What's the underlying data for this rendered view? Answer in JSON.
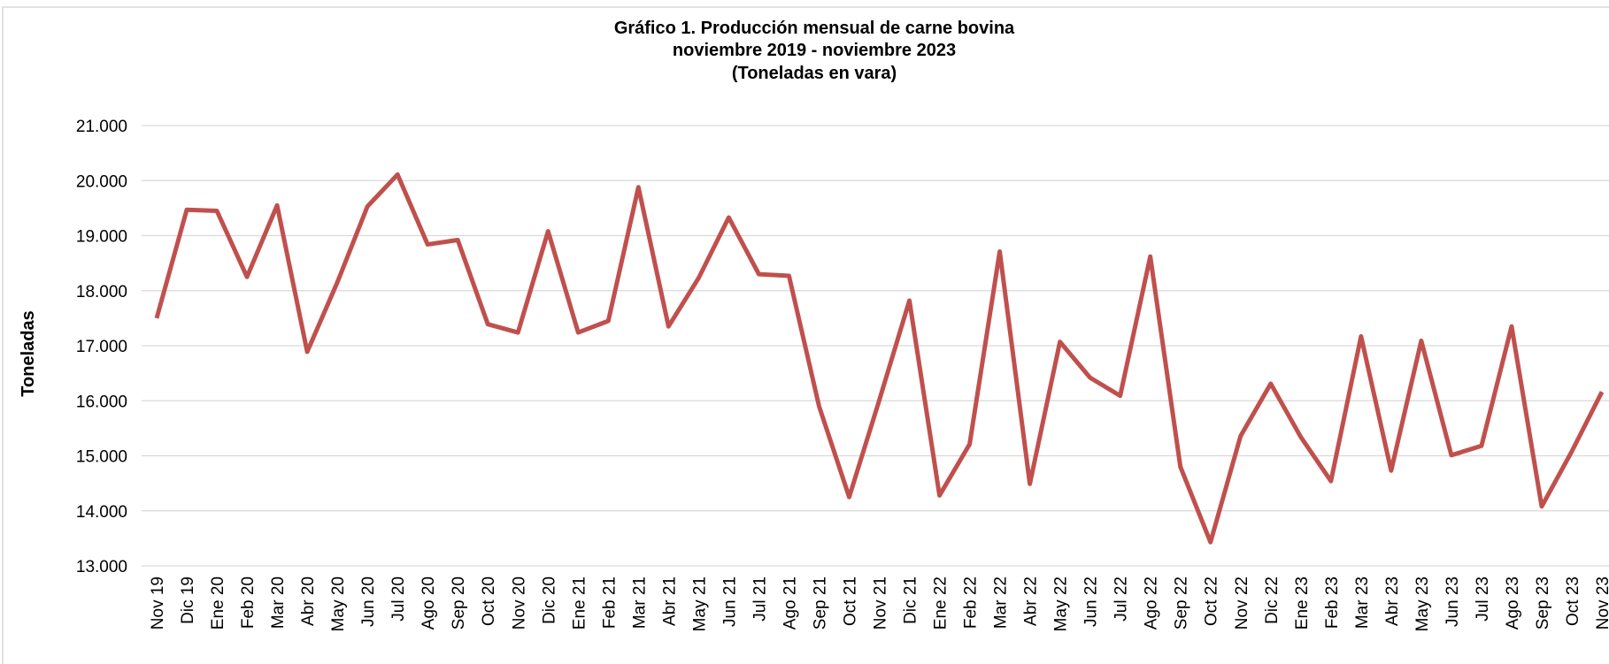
{
  "chart_data": {
    "type": "line",
    "title": [
      "Gráfico 1. Producción mensual de carne bovina",
      "noviembre 2019 - noviembre 2023",
      "(Toneladas en vara)"
    ],
    "ylabel": "Toneladas",
    "categories": [
      "Nov 19",
      "Dic 19",
      "Ene 20",
      "Feb 20",
      "Mar 20",
      "Abr 20",
      "May 20",
      "Jun 20",
      "Jul 20",
      "Ago 20",
      "Sep 20",
      "Oct 20",
      "Nov 20",
      "Dic 20",
      "Ene 21",
      "Feb 21",
      "Mar 21",
      "Abr 21",
      "May 21",
      "Jun 21",
      "Jul 21",
      "Ago 21",
      "Sep 21",
      "Oct 21",
      "Nov 21",
      "Dic 21",
      "Ene 22",
      "Feb 22",
      "Mar 22",
      "Abr 22",
      "May 22",
      "Jun 22",
      "Jul 22",
      "Ago 22",
      "Sep 22",
      "Oct 22",
      "Nov 22",
      "Dic 22",
      "Ene 23",
      "Feb 23",
      "Mar 23",
      "Abr 23",
      "May 23",
      "Jun 23",
      "Jul 23",
      "Ago 23",
      "Sep 23",
      "Oct 23",
      "Nov 23"
    ],
    "series": [
      {
        "color": "#c0504d",
        "values": [
          17500,
          19470,
          19450,
          18250,
          19550,
          16890,
          18150,
          19530,
          20110,
          18840,
          18920,
          17390,
          17240,
          19080,
          17240,
          17450,
          19880,
          17350,
          18230,
          19330,
          18300,
          18270,
          15900,
          14250,
          16010,
          17820,
          14280,
          15210,
          18710,
          14490,
          17070,
          16420,
          16090,
          18620,
          14800,
          13430,
          15360,
          16310,
          15340,
          14540,
          17170,
          14730,
          17090,
          15010,
          15180,
          17350,
          14080,
          15080,
          16160
        ]
      }
    ],
    "ylim": [
      13000,
      21000
    ],
    "yticks": [
      {
        "value": 13000,
        "label": "13.000"
      },
      {
        "value": 14000,
        "label": "14.000"
      },
      {
        "value": 15000,
        "label": "15.000"
      },
      {
        "value": 16000,
        "label": "16.000"
      },
      {
        "value": 17000,
        "label": "17.000"
      },
      {
        "value": 18000,
        "label": "18.000"
      },
      {
        "value": 19000,
        "label": "19.000"
      },
      {
        "value": 20000,
        "label": "20.000"
      },
      {
        "value": 21000,
        "label": "21.000"
      }
    ],
    "grid": true
  }
}
